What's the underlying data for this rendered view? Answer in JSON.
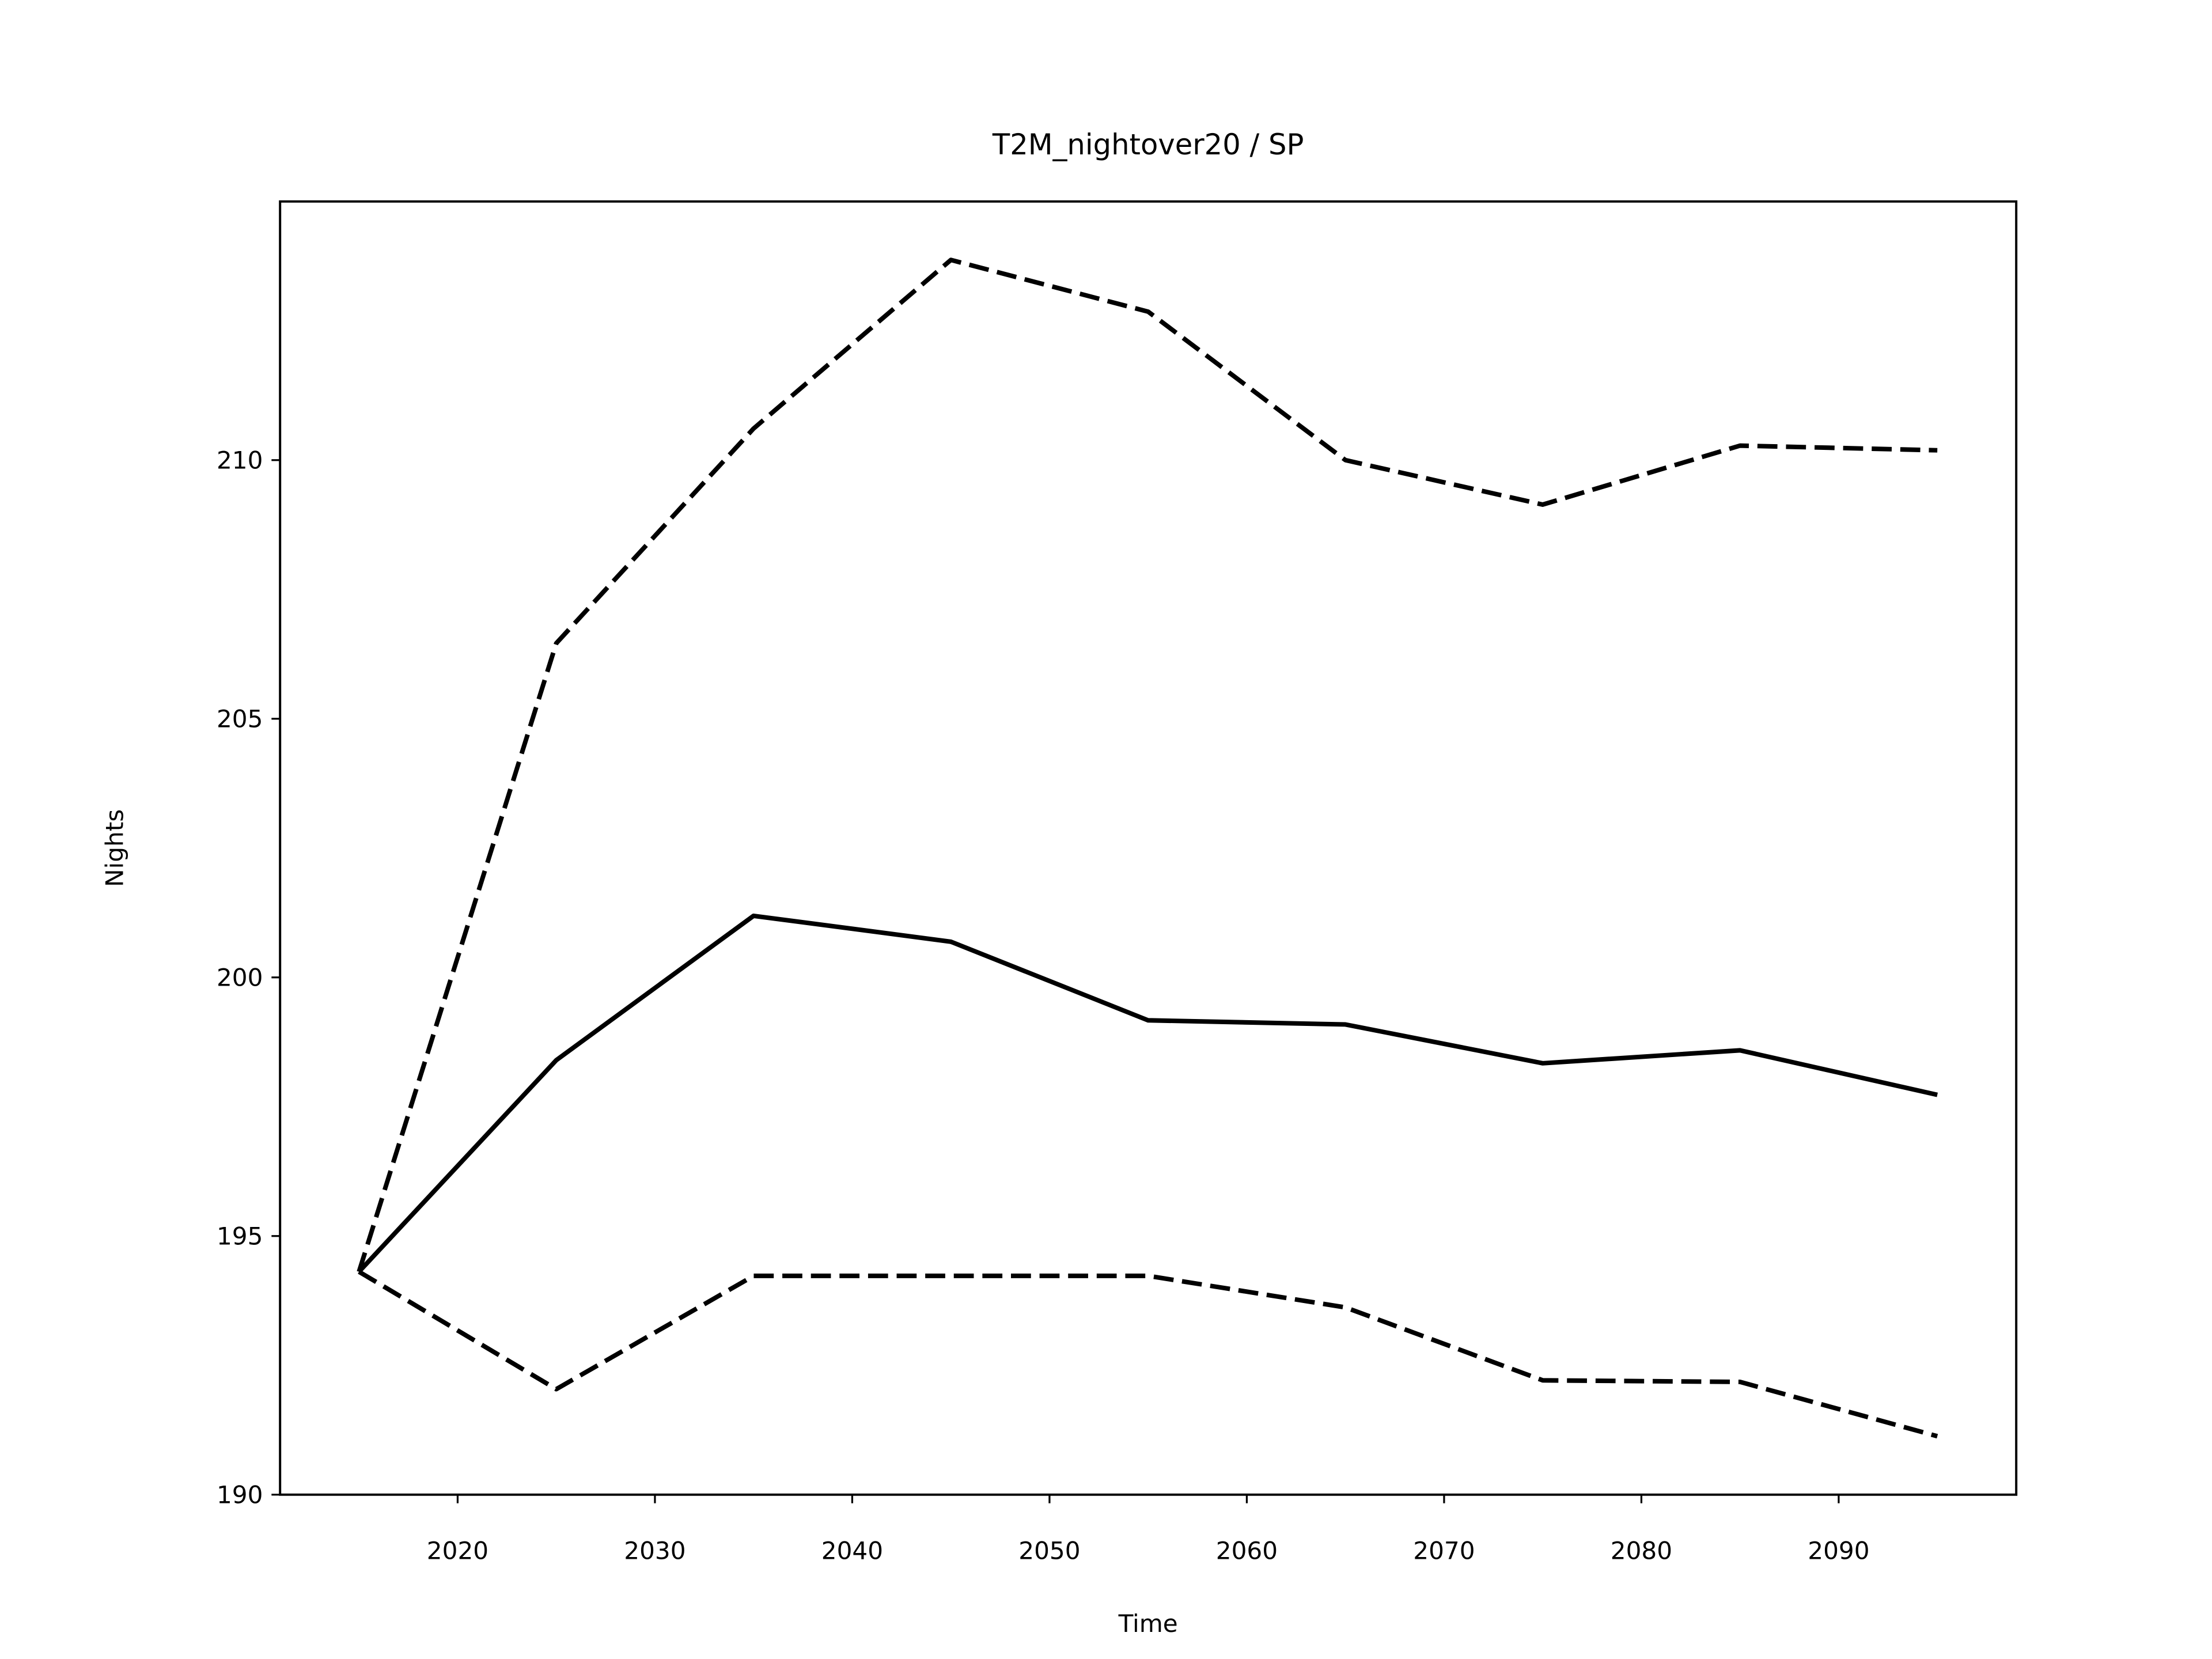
{
  "chart_data": {
    "type": "line",
    "title": "T2M_nightover20 / SP",
    "xlabel": "Time",
    "ylabel": "Nights",
    "x": [
      2015,
      2025,
      2035,
      2045,
      2055,
      2065,
      2075,
      2085,
      2095
    ],
    "series": [
      {
        "color": "#000000",
        "linestyle": "solid",
        "values": [
          194.31,
          198.4,
          201.19,
          200.69,
          199.17,
          199.09,
          198.34,
          198.59,
          197.73
        ]
      },
      {
        "color": "#000000",
        "linestyle": "dashed",
        "values": [
          194.31,
          206.46,
          210.61,
          213.87,
          212.87,
          210.0,
          209.14,
          210.28,
          210.19
        ]
      },
      {
        "color": "#000000",
        "linestyle": "dashed",
        "values": [
          194.31,
          192.04,
          194.23,
          194.23,
          194.23,
          193.62,
          192.21,
          192.18,
          191.13
        ]
      }
    ],
    "xlim": [
      2011,
      2099
    ],
    "ylim": [
      190,
      215
    ],
    "xticks": [
      2020,
      2030,
      2040,
      2050,
      2060,
      2070,
      2080,
      2090
    ],
    "yticks": [
      190,
      195,
      200,
      205,
      210
    ],
    "grid": false
  }
}
